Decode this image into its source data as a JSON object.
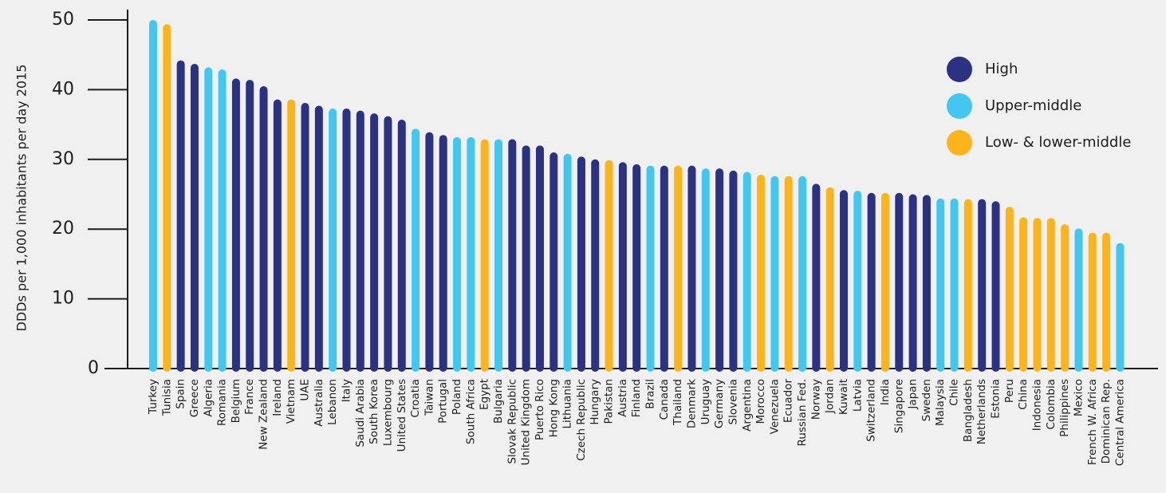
{
  "chart_data": {
    "type": "bar",
    "ylabel": "DDDs per 1,000 inhabitants per day 2015",
    "xlabel": "",
    "ylim": [
      0,
      53
    ],
    "yticks": [
      0,
      10,
      20,
      30,
      40,
      50
    ],
    "grid": false,
    "legend_position": "top-right",
    "colors": {
      "High": "#2b3282",
      "Upper-middle": "#42c8f0",
      "Low- & lower-middle": "#fbb41c"
    },
    "legend": [
      "High",
      "Upper-middle",
      "Low- & lower-middle"
    ],
    "categories": [
      "Turkey",
      "Tunisia",
      "Spain",
      "Greece",
      "Algeria",
      "Romania",
      "Belgium",
      "France",
      "New Zealand",
      "Ireland",
      "Vietnam",
      "UAE",
      "Australia",
      "Lebanon",
      "Italy",
      "Saudi Arabia",
      "South Korea",
      "Luxembourg",
      "United States",
      "Croatia",
      "Taiwan",
      "Portugal",
      "Poland",
      "South Africa",
      "Egypt",
      "Bulgaria",
      "Slovak Republic",
      "United Kingdom",
      "Puerto Rico",
      "Hong Kong",
      "Lithuania",
      "Czech Republic",
      "Hungary",
      "Pakistan",
      "Austria",
      "Finland",
      "Brazil",
      "Canada",
      "Thailand",
      "Denmark",
      "Uruguay",
      "Germany",
      "Slovenia",
      "Argentina",
      "Morocco",
      "Venezuela",
      "Ecuador",
      "Russian Fed.",
      "Norway",
      "Jordan",
      "Kuwait",
      "Latvia",
      "Switzerland",
      "India",
      "Singapore",
      "Japan",
      "Sweden",
      "Malaysia",
      "Chile",
      "Bangladesh",
      "Netherlands",
      "Estonia",
      "Peru",
      "China",
      "Indonesia",
      "Colombia",
      "Philippines",
      "Mexico",
      "French W. Africa",
      "Dominican Rep.",
      "Central America"
    ],
    "values": [
      50.0,
      49.4,
      44.2,
      43.7,
      43.2,
      42.9,
      41.6,
      41.4,
      40.5,
      38.6,
      38.6,
      38.1,
      37.7,
      37.3,
      37.3,
      37.0,
      36.6,
      36.2,
      35.7,
      34.4,
      33.9,
      33.5,
      33.2,
      33.2,
      32.9,
      32.9,
      32.9,
      32.0,
      32.0,
      31.0,
      30.8,
      30.4,
      30.0,
      29.9,
      29.6,
      29.3,
      29.1,
      29.1,
      29.1,
      29.1,
      28.7,
      28.7,
      28.4,
      28.2,
      27.8,
      27.6,
      27.6,
      27.6,
      26.5,
      26.0,
      25.6,
      25.5,
      25.2,
      25.2,
      25.2,
      25.0,
      24.9,
      24.4,
      24.4,
      24.3,
      24.3,
      24.0,
      23.2,
      21.7,
      21.6,
      21.6,
      20.7,
      20.1,
      19.5,
      19.5,
      18.0
    ],
    "groups": [
      "Upper-middle",
      "Low- & lower-middle",
      "High",
      "High",
      "Upper-middle",
      "Upper-middle",
      "High",
      "High",
      "High",
      "High",
      "Low- & lower-middle",
      "High",
      "High",
      "Upper-middle",
      "High",
      "High",
      "High",
      "High",
      "High",
      "Upper-middle",
      "High",
      "High",
      "Upper-middle",
      "Upper-middle",
      "Low- & lower-middle",
      "Upper-middle",
      "High",
      "High",
      "High",
      "High",
      "Upper-middle",
      "High",
      "High",
      "Low- & lower-middle",
      "High",
      "High",
      "Upper-middle",
      "High",
      "Low- & lower-middle",
      "High",
      "Upper-middle",
      "High",
      "High",
      "Upper-middle",
      "Low- & lower-middle",
      "Upper-middle",
      "Low- & lower-middle",
      "Upper-middle",
      "High",
      "Low- & lower-middle",
      "High",
      "Upper-middle",
      "High",
      "Low- & lower-middle",
      "High",
      "High",
      "High",
      "Upper-middle",
      "Upper-middle",
      "Low- & lower-middle",
      "High",
      "High",
      "Low- & lower-middle",
      "Low- & lower-middle",
      "Low- & lower-middle",
      "Low- & lower-middle",
      "Low- & lower-middle",
      "Upper-middle",
      "Low- & lower-middle",
      "Low- & lower-middle",
      "Upper-middle"
    ]
  }
}
